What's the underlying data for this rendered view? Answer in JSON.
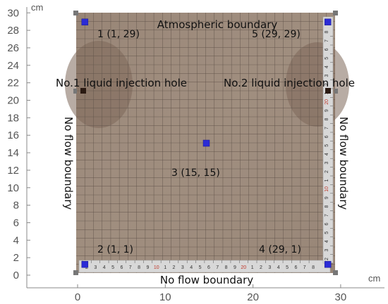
{
  "axes": {
    "unit_y": "cm",
    "unit_x": "cm",
    "y_ticks": [
      "0",
      "2",
      "4",
      "6",
      "8",
      "10",
      "12",
      "14",
      "16",
      "18",
      "20",
      "22",
      "24",
      "26",
      "28",
      "30"
    ],
    "x_ticks": [
      "0",
      "10",
      "20",
      "30"
    ]
  },
  "boundaries": {
    "top": "Atmospheric boundary",
    "bottom": "No flow boundary",
    "left": "No flow boundary",
    "right": "No flow boundary"
  },
  "holes": {
    "left": "No.1 liquid injection hole",
    "right": "No.2 liquid injection hole"
  },
  "points": [
    {
      "id": "1",
      "label": "1 (1,  29)",
      "x": 1,
      "y": 29
    },
    {
      "id": "2",
      "label": "2 (1,  1)",
      "x": 1,
      "y": 1
    },
    {
      "id": "3",
      "label": "3 (15,  15)",
      "x": 15,
      "y": 15
    },
    {
      "id": "4",
      "label": "4 (29,  1)",
      "x": 29,
      "y": 1
    },
    {
      "id": "5",
      "label": "5 (29,  29)",
      "x": 29,
      "y": 29
    }
  ],
  "ruler_marks": {
    "bottom": [
      "2",
      "3",
      "4",
      "5",
      "6",
      "7",
      "8",
      "9",
      "10",
      "1",
      "2",
      "3",
      "4",
      "5",
      "6",
      "7",
      "8",
      "9",
      "20",
      "1",
      "2",
      "3",
      "4",
      "5",
      "6",
      "7",
      "8"
    ],
    "right": [
      "2",
      "3",
      "4",
      "5",
      "6",
      "7",
      "8",
      "9",
      "10",
      "1",
      "2",
      "3",
      "4",
      "5",
      "6",
      "7",
      "8",
      "9",
      "20",
      "1",
      "2",
      "3",
      "4",
      "5",
      "6",
      "7",
      "8"
    ]
  },
  "colors": {
    "tank": "#9c8a7b",
    "sensor": "#2b2bd6",
    "grid": "#5f5249",
    "ruler": "#d8d8d8"
  }
}
